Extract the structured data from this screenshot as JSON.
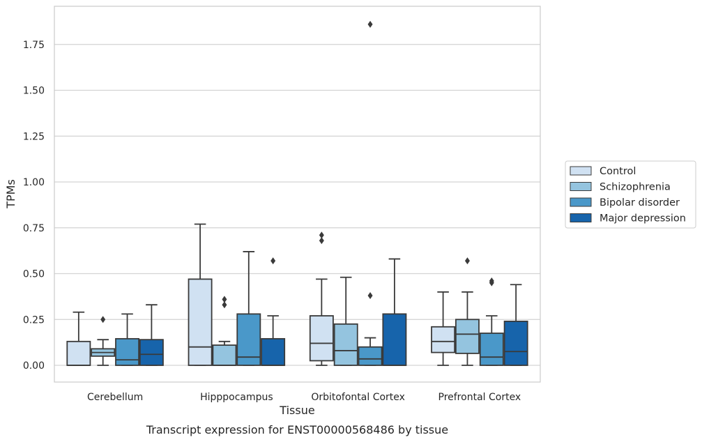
{
  "chart_data": {
    "type": "box",
    "title": "",
    "caption": "Transcript expression for ENST00000568486 by tissue",
    "xlabel": "Tissue",
    "ylabel": "TPMs",
    "ylim": [
      -0.09,
      1.96
    ],
    "yticks": [
      0.0,
      0.25,
      0.5,
      0.75,
      1.0,
      1.25,
      1.5,
      1.75
    ],
    "ytick_labels": [
      "0.00",
      "0.25",
      "0.50",
      "0.75",
      "1.00",
      "1.25",
      "1.50",
      "1.75"
    ],
    "grid": "horizontal",
    "legend_position": "right",
    "categories": [
      "Cerebellum",
      "Hipppocampus",
      "Orbitofontal Cortex",
      "Prefrontal Cortex"
    ],
    "series": [
      {
        "name": "Control",
        "color": "#d0e1f2",
        "boxes": [
          {
            "whislo": 0.0,
            "q1": 0.0,
            "med": 0.0,
            "q3": 0.13,
            "whishi": 0.29,
            "fliers": []
          },
          {
            "whislo": 0.0,
            "q1": 0.0,
            "med": 0.1,
            "q3": 0.47,
            "whishi": 0.77,
            "fliers": []
          },
          {
            "whislo": 0.0,
            "q1": 0.025,
            "med": 0.12,
            "q3": 0.27,
            "whishi": 0.47,
            "fliers": [
              0.68,
              0.71
            ]
          },
          {
            "whislo": 0.0,
            "q1": 0.07,
            "med": 0.13,
            "q3": 0.21,
            "whishi": 0.4,
            "fliers": []
          }
        ]
      },
      {
        "name": "Schizophrenia",
        "color": "#94c4df",
        "boxes": [
          {
            "whislo": 0.0,
            "q1": 0.05,
            "med": 0.07,
            "q3": 0.09,
            "whishi": 0.14,
            "fliers": [
              0.25
            ]
          },
          {
            "whislo": 0.0,
            "q1": 0.0,
            "med": 0.0,
            "q3": 0.11,
            "whishi": 0.13,
            "fliers": [
              0.33,
              0.36
            ]
          },
          {
            "whislo": 0.0,
            "q1": 0.0,
            "med": 0.08,
            "q3": 0.225,
            "whishi": 0.48,
            "fliers": []
          },
          {
            "whislo": 0.0,
            "q1": 0.065,
            "med": 0.17,
            "q3": 0.25,
            "whishi": 0.4,
            "fliers": [
              0.57
            ]
          }
        ]
      },
      {
        "name": "Bipolar disorder",
        "color": "#4a98c9",
        "boxes": [
          {
            "whislo": 0.0,
            "q1": 0.0,
            "med": 0.03,
            "q3": 0.145,
            "whishi": 0.28,
            "fliers": []
          },
          {
            "whislo": 0.0,
            "q1": 0.0,
            "med": 0.045,
            "q3": 0.28,
            "whishi": 0.62,
            "fliers": []
          },
          {
            "whislo": 0.0,
            "q1": 0.0,
            "med": 0.035,
            "q3": 0.1,
            "whishi": 0.15,
            "fliers": [
              0.38,
              1.86
            ]
          },
          {
            "whislo": 0.0,
            "q1": 0.0,
            "med": 0.045,
            "q3": 0.175,
            "whishi": 0.27,
            "fliers": [
              0.45,
              0.46
            ]
          }
        ]
      },
      {
        "name": "Major depression",
        "color": "#1764ab",
        "boxes": [
          {
            "whislo": 0.0,
            "q1": 0.0,
            "med": 0.06,
            "q3": 0.14,
            "whishi": 0.33,
            "fliers": []
          },
          {
            "whislo": 0.0,
            "q1": 0.0,
            "med": 0.0,
            "q3": 0.145,
            "whishi": 0.27,
            "fliers": [
              0.57
            ]
          },
          {
            "whislo": 0.0,
            "q1": 0.0,
            "med": 0.0,
            "q3": 0.28,
            "whishi": 0.58,
            "fliers": []
          },
          {
            "whislo": 0.0,
            "q1": 0.0,
            "med": 0.075,
            "q3": 0.24,
            "whishi": 0.44,
            "fliers": []
          }
        ]
      }
    ]
  }
}
